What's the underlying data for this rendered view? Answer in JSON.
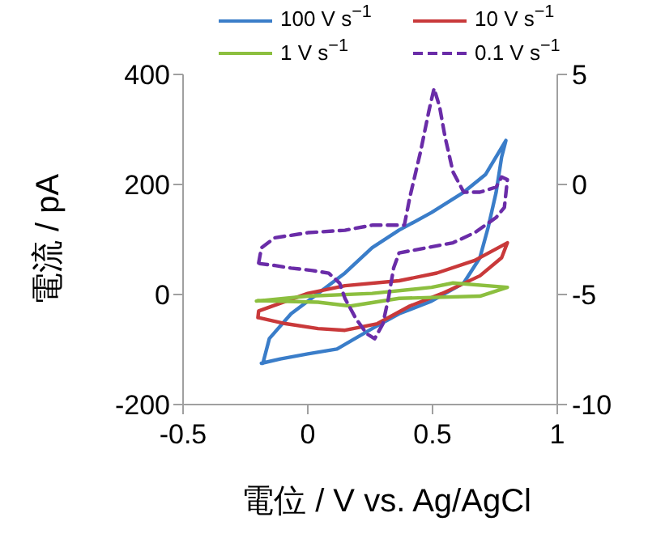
{
  "chart_data": {
    "type": "line",
    "xlabel": "電位 / V vs. Ag/AgCl",
    "ylabel": "電流 / pA",
    "xlim": [
      -0.5,
      1
    ],
    "xticks": [
      -0.5,
      0,
      0.5,
      1
    ],
    "ylim": [
      -200,
      400
    ],
    "yticks": [
      -200,
      0,
      200,
      400
    ],
    "y2lim": [
      -10,
      5
    ],
    "y2ticks": [
      -10,
      -5,
      0,
      5
    ],
    "legend": "top",
    "grid": false,
    "marker": "none",
    "series": [
      {
        "name": "100 V s$^{−1}$",
        "color": "#3a7dc9",
        "line_style": "solid",
        "x": [
          -0.18,
          -0.154,
          -0.067,
          0,
          0.149,
          0.258,
          0.366,
          0.496,
          0.625,
          0.712,
          0.794,
          0.777,
          0.755,
          0.723,
          0.69,
          0.625,
          0.496,
          0.366,
          0.258,
          0.117,
          0,
          -0.11,
          -0.186
        ],
        "values": [
          -125,
          -80,
          -35,
          -12,
          39,
          85,
          117,
          149,
          186,
          218,
          280,
          250,
          186,
          122,
          67,
          21,
          -12,
          -35,
          -62,
          -99,
          -108,
          -117,
          -125
        ]
      },
      {
        "name": "10 V s$^{−1}$",
        "color": "#c9393a",
        "line_style": "solid",
        "x": [
          -0.2,
          -0.197,
          0,
          0.149,
          0.366,
          0.517,
          0.669,
          0.8,
          0.777,
          0.69,
          0.539,
          0.409,
          0.279,
          0.149,
          0.041,
          -0.089,
          -0.197
        ],
        "values": [
          -42,
          -30,
          2,
          16,
          25,
          39,
          62,
          94,
          67,
          34,
          2,
          -21,
          -53,
          -65,
          -62,
          -53,
          -42
        ]
      },
      {
        "name": "1 V s$^{−1}$",
        "color": "#8cbf3f",
        "line_style": "solid",
        "x": [
          -0.206,
          0,
          0.258,
          0.496,
          0.582,
          0.8,
          0.69,
          0.366,
          0.171,
          0.041,
          -0.2
        ],
        "values": [
          -12,
          -3,
          2,
          13,
          21,
          13,
          -3,
          -7,
          -21,
          -14,
          -11
        ]
      },
      {
        "name": "0.1 V s$^{−1}$",
        "color": "#6a2ca8",
        "line_style": "dashed",
        "axis": "y2",
        "x": [
          -0.197,
          -0.186,
          -0.132,
          -0.067,
          0,
          0.149,
          0.258,
          0.387,
          0.409,
          0.452,
          0.485,
          0.506,
          0.528,
          0.55,
          0.582,
          0.625,
          0.69,
          0.755,
          0.777,
          0.8,
          0.788,
          0.755,
          0.669,
          0.582,
          0.474,
          0.366,
          0.344,
          0.323,
          0.301,
          0.268,
          0.236,
          0.193,
          0.149,
          0.128,
          0.084,
          0.019,
          -0.067,
          -0.132,
          -0.192
        ],
        "values": [
          -3.57,
          -2.88,
          -2.42,
          -2.31,
          -2.19,
          -2.08,
          -1.85,
          -1.85,
          -0.58,
          1.49,
          3.32,
          4.36,
          3.55,
          2.17,
          0.57,
          -0.35,
          -0.35,
          -0.12,
          0.34,
          0.22,
          -1.04,
          -1.5,
          -2.19,
          -2.65,
          -2.88,
          -3.11,
          -3.8,
          -5.18,
          -6.33,
          -7.01,
          -6.78,
          -6.1,
          -5.18,
          -4.49,
          -4.03,
          -3.91,
          -3.8,
          -3.68,
          -3.6
        ]
      }
    ]
  }
}
